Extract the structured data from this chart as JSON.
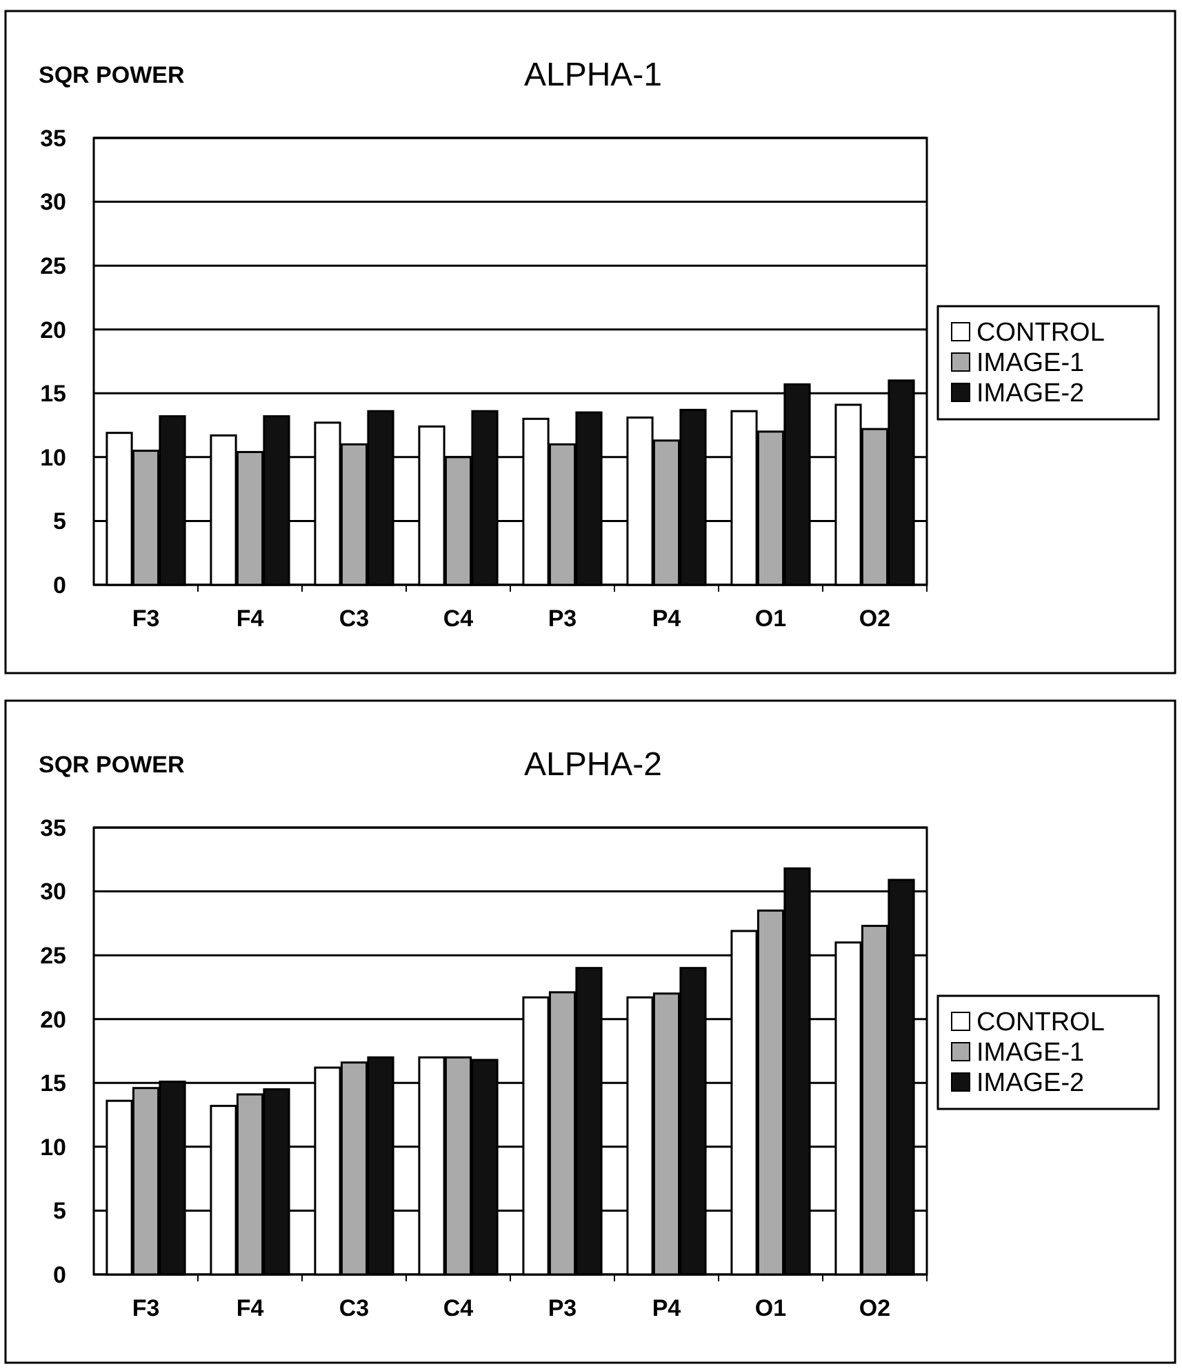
{
  "chart_data": [
    {
      "type": "bar",
      "title": "ALPHA-1",
      "ylabel": "SQR POWER",
      "categories": [
        "F3",
        "F4",
        "C3",
        "C4",
        "P3",
        "P4",
        "O1",
        "O2"
      ],
      "series": [
        {
          "name": "CONTROL",
          "color": "#ffffff",
          "values": [
            11.9,
            11.7,
            12.7,
            12.4,
            13.0,
            13.1,
            13.6,
            14.1
          ]
        },
        {
          "name": "IMAGE-1",
          "color": "#aaaaaa",
          "values": [
            10.5,
            10.4,
            11.0,
            10.0,
            11.0,
            11.3,
            12.0,
            12.2
          ]
        },
        {
          "name": "IMAGE-2",
          "color": "#111111",
          "values": [
            13.2,
            13.2,
            13.6,
            13.6,
            13.5,
            13.7,
            15.7,
            16.0
          ]
        }
      ],
      "ylim": [
        0,
        35
      ],
      "yticks": [
        0,
        5,
        10,
        15,
        20,
        25,
        30,
        35
      ],
      "grid": "y",
      "legend": "right"
    },
    {
      "type": "bar",
      "title": "ALPHA-2",
      "ylabel": "SQR POWER",
      "categories": [
        "F3",
        "F4",
        "C3",
        "C4",
        "P3",
        "P4",
        "O1",
        "O2"
      ],
      "series": [
        {
          "name": "CONTROL",
          "color": "#ffffff",
          "values": [
            13.6,
            13.2,
            16.2,
            17.0,
            21.7,
            21.7,
            26.9,
            26.0
          ]
        },
        {
          "name": "IMAGE-1",
          "color": "#aaaaaa",
          "values": [
            14.6,
            14.1,
            16.6,
            17.0,
            22.1,
            22.0,
            28.5,
            27.3
          ]
        },
        {
          "name": "IMAGE-2",
          "color": "#111111",
          "values": [
            15.1,
            14.5,
            17.0,
            16.8,
            24.0,
            24.0,
            31.8,
            30.9
          ]
        }
      ],
      "ylim": [
        0,
        35
      ],
      "yticks": [
        0,
        5,
        10,
        15,
        20,
        25,
        30,
        35
      ],
      "grid": "y",
      "legend": "right"
    }
  ]
}
